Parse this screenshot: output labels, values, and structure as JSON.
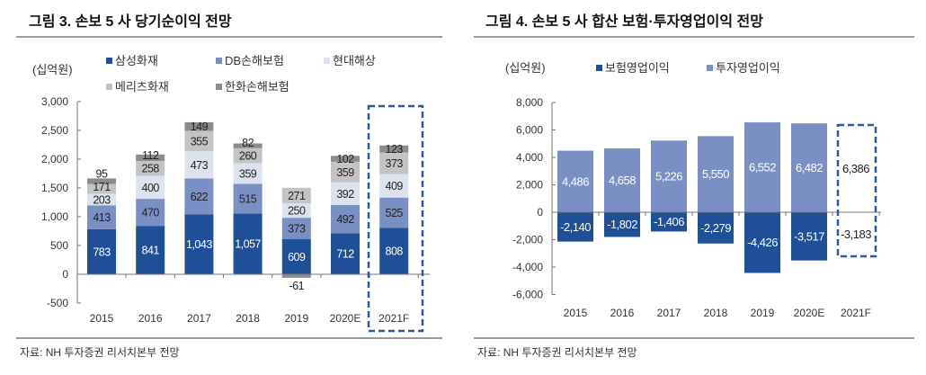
{
  "left": {
    "title": "그림 3. 손보 5 사 당기순이익 전망",
    "source": "자료: NH 투자증권 리서치본부 전망"
  },
  "right": {
    "title": "그림 4. 손보 5 사 합산 보험·투자영업이익 전망",
    "source": "자료: NH 투자증권 리서치본부 전망"
  },
  "chart_data": [
    {
      "type": "bar",
      "stacked": true,
      "unit_label": "(십억원)",
      "categories": [
        "2015",
        "2016",
        "2017",
        "2018",
        "2019",
        "2020E",
        "2021F"
      ],
      "ylim": [
        -500,
        3000
      ],
      "yticks": [
        3000,
        2500,
        2000,
        1500,
        1000,
        500,
        0,
        -500
      ],
      "ytick_labels": [
        "3,000",
        "2,500",
        "2,000",
        "1,500",
        "1,000",
        "500",
        "0",
        "-500"
      ],
      "legend_position": "top",
      "highlight_category": "2021F",
      "series": [
        {
          "name": "삼성화재",
          "color": "#1f4f96",
          "label_color": "#ffffff",
          "values": [
            783,
            841,
            1043,
            1057,
            609,
            712,
            808
          ],
          "labels": [
            "783",
            "841",
            "1,043",
            "1,057",
            "609",
            "712",
            "808"
          ]
        },
        {
          "name": "DB손해보험",
          "color": "#7a8fc3",
          "label_color": "#222222",
          "values": [
            413,
            470,
            622,
            515,
            373,
            492,
            525
          ],
          "labels": [
            "413",
            "470",
            "622",
            "515",
            "373",
            "492",
            "525"
          ]
        },
        {
          "name": "현대해상",
          "color": "#dde3ee",
          "label_color": "#222222",
          "values": [
            203,
            400,
            473,
            359,
            250,
            392,
            409
          ],
          "labels": [
            "203",
            "400",
            "473",
            "359",
            "250",
            "392",
            "409"
          ]
        },
        {
          "name": "메리츠화재",
          "color": "#c4c4c4",
          "label_color": "#222222",
          "values": [
            171,
            258,
            355,
            260,
            271,
            359,
            373
          ],
          "labels": [
            "171",
            "258",
            "355",
            "260",
            "271",
            "359",
            "373"
          ]
        },
        {
          "name": "한화손해보험",
          "color": "#8c8c8c",
          "label_color": "#222222",
          "values": [
            95,
            112,
            149,
            82,
            -61,
            102,
            123
          ],
          "labels": [
            "95",
            "112",
            "149",
            "82",
            "-61",
            "102",
            "123"
          ]
        }
      ]
    },
    {
      "type": "bar",
      "stacked": true,
      "unit_label": "(십억원)",
      "categories": [
        "2015",
        "2016",
        "2017",
        "2018",
        "2019",
        "2020E",
        "2021F"
      ],
      "ylim": [
        -6000,
        8000
      ],
      "yticks": [
        8000,
        6000,
        4000,
        2000,
        0,
        -2000,
        -4000,
        -6000
      ],
      "ytick_labels": [
        "8,000",
        "6,000",
        "4,000",
        "2,000",
        "0",
        "-2,000",
        "-4,000",
        "-6,000"
      ],
      "legend_position": "top",
      "highlight_category": "2021F",
      "series": [
        {
          "name": "보험영업이익",
          "color": "#1f4f96",
          "label_color": "#ffffff",
          "values": [
            -2140,
            -1802,
            -1406,
            -2279,
            -4426,
            -3517,
            -3183
          ],
          "labels": [
            "-2,140",
            "-1,802",
            "-1,406",
            "-2,279",
            "-4,426",
            "-3,517",
            "-3,183"
          ]
        },
        {
          "name": "투자영업이익",
          "color": "#7a8fc3",
          "label_color": "#ffffff",
          "values": [
            4486,
            4658,
            5226,
            5550,
            6552,
            6482,
            6386
          ],
          "labels": [
            "4,486",
            "4,658",
            "5,226",
            "5,550",
            "6,552",
            "6,482",
            "6,386"
          ]
        }
      ]
    }
  ]
}
